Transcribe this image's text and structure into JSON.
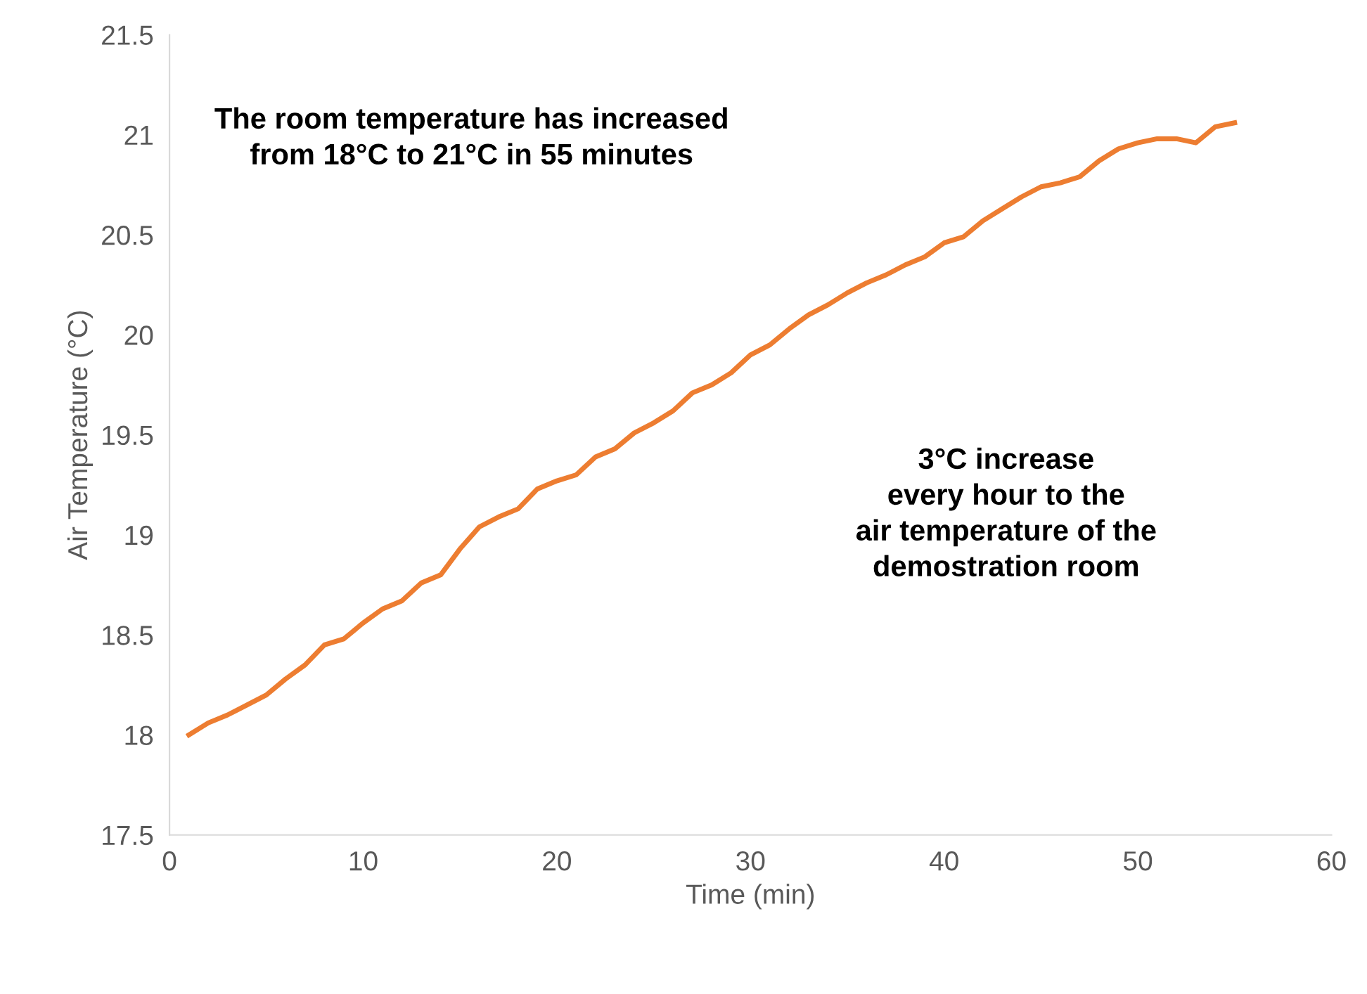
{
  "chart_data": {
    "type": "line",
    "xlabel": "Time (min)",
    "ylabel": "Air Temperature (°C)",
    "x": [
      1,
      2,
      3,
      4,
      5,
      6,
      7,
      8,
      9,
      10,
      11,
      12,
      13,
      14,
      15,
      16,
      17,
      18,
      19,
      20,
      21,
      22,
      23,
      24,
      25,
      26,
      27,
      28,
      29,
      30,
      31,
      32,
      33,
      34,
      35,
      36,
      37,
      38,
      39,
      40,
      41,
      42,
      43,
      44,
      45,
      46,
      47,
      48,
      49,
      50,
      51,
      52,
      53,
      54,
      55
    ],
    "series": [
      {
        "color": "#ed7d31",
        "values": [
          18.0,
          18.06,
          18.1,
          18.15,
          18.2,
          18.28,
          18.35,
          18.45,
          18.48,
          18.56,
          18.63,
          18.67,
          18.76,
          18.8,
          18.93,
          19.04,
          19.09,
          19.13,
          19.23,
          19.27,
          19.3,
          19.39,
          19.43,
          19.51,
          19.56,
          19.62,
          19.71,
          19.75,
          19.81,
          19.9,
          19.95,
          20.03,
          20.1,
          20.15,
          20.21,
          20.26,
          20.3,
          20.35,
          20.39,
          20.46,
          20.49,
          20.57,
          20.63,
          20.69,
          20.74,
          20.76,
          20.79,
          20.87,
          20.93,
          20.96,
          20.98,
          20.98,
          20.96,
          21.04,
          21.06
        ]
      }
    ],
    "xlim": [
      0,
      60
    ],
    "xticks": [
      0,
      10,
      20,
      30,
      40,
      50,
      60
    ],
    "ylim": [
      17.5,
      21.5
    ],
    "yticks": [
      17.5,
      18,
      18.5,
      19,
      19.5,
      20,
      20.5,
      21,
      21.5
    ],
    "grid": false,
    "marker": "none",
    "line_style": "solid",
    "annotations": [
      "The room temperature has increased\nfrom 18°C to 21°C in 55 minutes",
      "3°C increase\nevery hour to the\nair temperature of the\ndemostration room"
    ]
  }
}
